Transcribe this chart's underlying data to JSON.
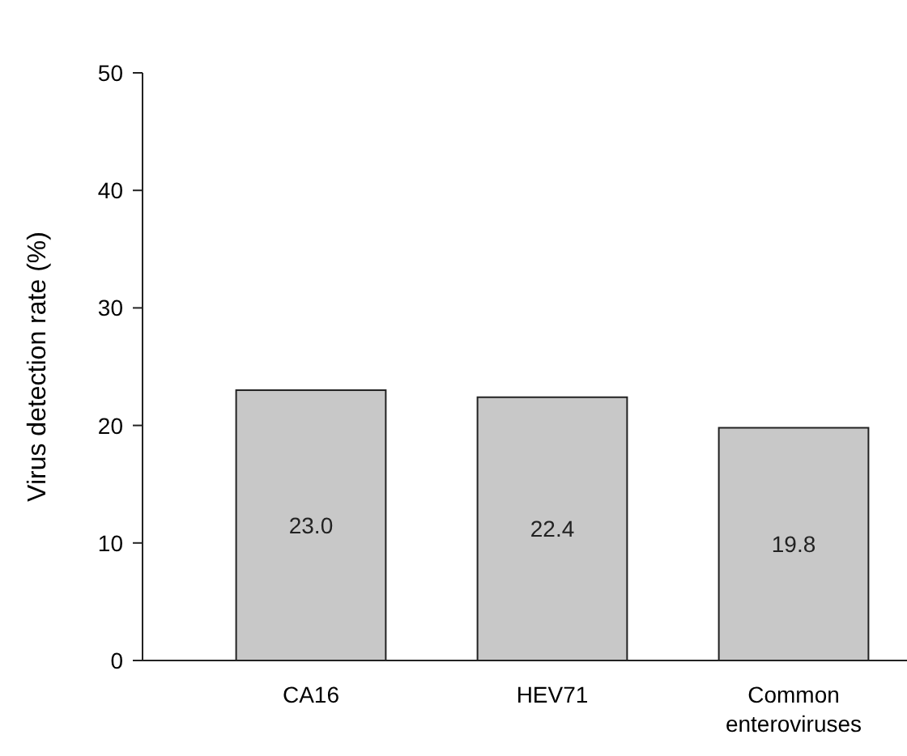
{
  "chart_data": {
    "type": "bar",
    "ylabel": "Virus detection rate (%)",
    "categories": [
      "CA16",
      "HEV71",
      "Common enteroviruses"
    ],
    "values": [
      23.0,
      22.4,
      19.8
    ],
    "value_labels": [
      "23.0",
      "22.4",
      "19.8"
    ],
    "color": "#c8c8c8",
    "ylim": [
      0,
      50
    ],
    "yticks": [
      0,
      10,
      20,
      30,
      40,
      50
    ],
    "grid": false
  }
}
